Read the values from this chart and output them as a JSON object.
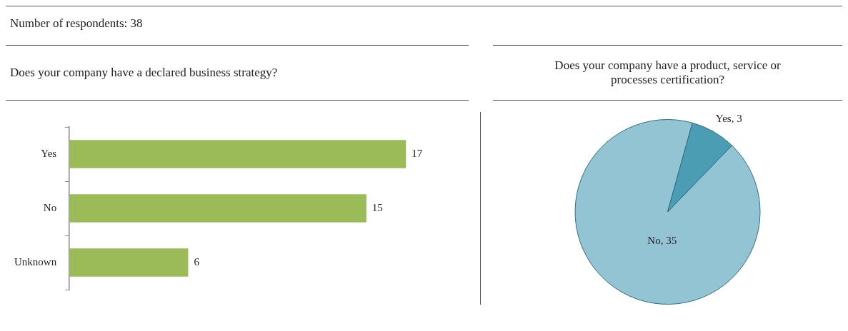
{
  "chart_data": [
    {
      "type": "bar",
      "orientation": "horizontal",
      "title": "Does your company have a declared business strategy?",
      "annotations": [
        "Number of respondents: 38"
      ],
      "categories": [
        "Yes",
        "No",
        "Unknown"
      ],
      "values": [
        17,
        15,
        6
      ],
      "color": "#9bbb59",
      "tick_labels": "y",
      "data_labels": true,
      "grid": false,
      "legend": false
    },
    {
      "type": "pie",
      "title": "Does your company have a product, service or processes certification?",
      "categories": [
        "No, 35",
        "Yes, 3"
      ],
      "values": [
        35,
        3
      ],
      "colors": [
        "#93c4d4",
        "#4a9db2"
      ],
      "legend": false
    }
  ]
}
